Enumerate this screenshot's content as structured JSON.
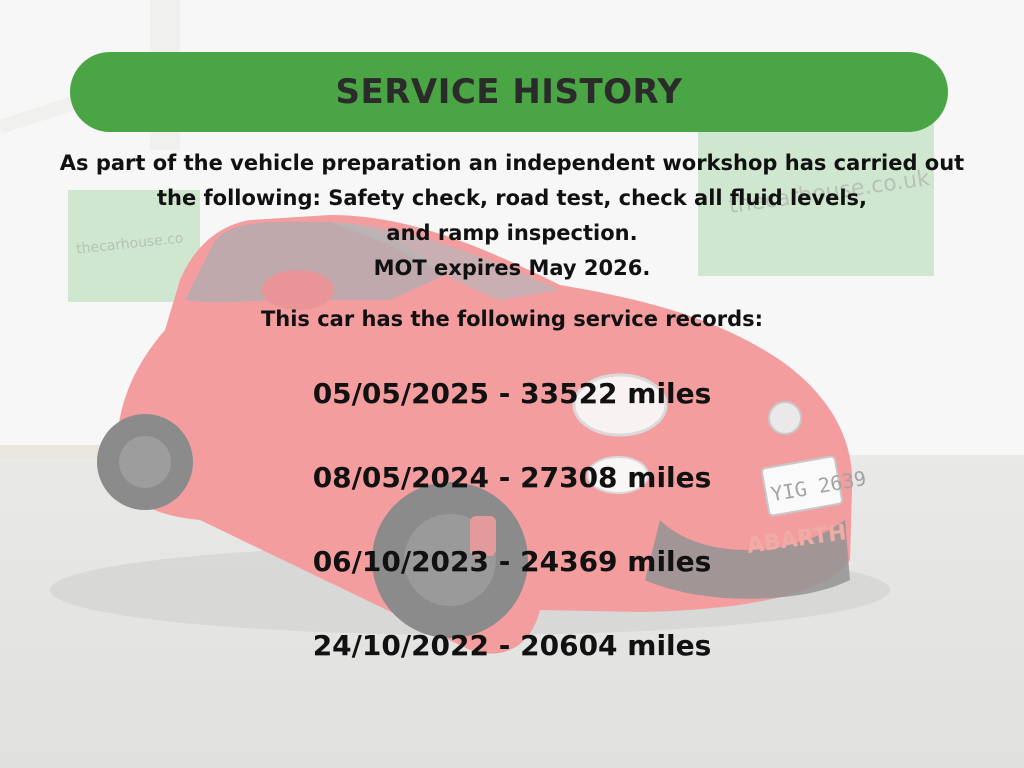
{
  "header": {
    "title": "SERVICE HISTORY"
  },
  "intro": {
    "lines": [
      "As part of the vehicle preparation an independent workshop has carried out",
      "the following: Safety check, road test, check all fluid levels,",
      "and ramp inspection.",
      "MOT expires May 2026."
    ]
  },
  "records_title": "This car has the following service records:",
  "records": [
    "05/05/2025 - 33522 miles",
    "08/05/2024 - 27308 miles",
    "06/10/2023 - 24369 miles",
    "24/10/2022 - 20604 miles"
  ],
  "background": {
    "banner_left_text": "thecarhouse.co",
    "banner_right_text": "thecarhouse.co.uk",
    "number_plate": "YIG 2639",
    "badge_text": "ABARTH"
  },
  "colors": {
    "title_bar": "#4aa544",
    "car_body": "#e94a4f",
    "banner": "#a7d3a5"
  }
}
